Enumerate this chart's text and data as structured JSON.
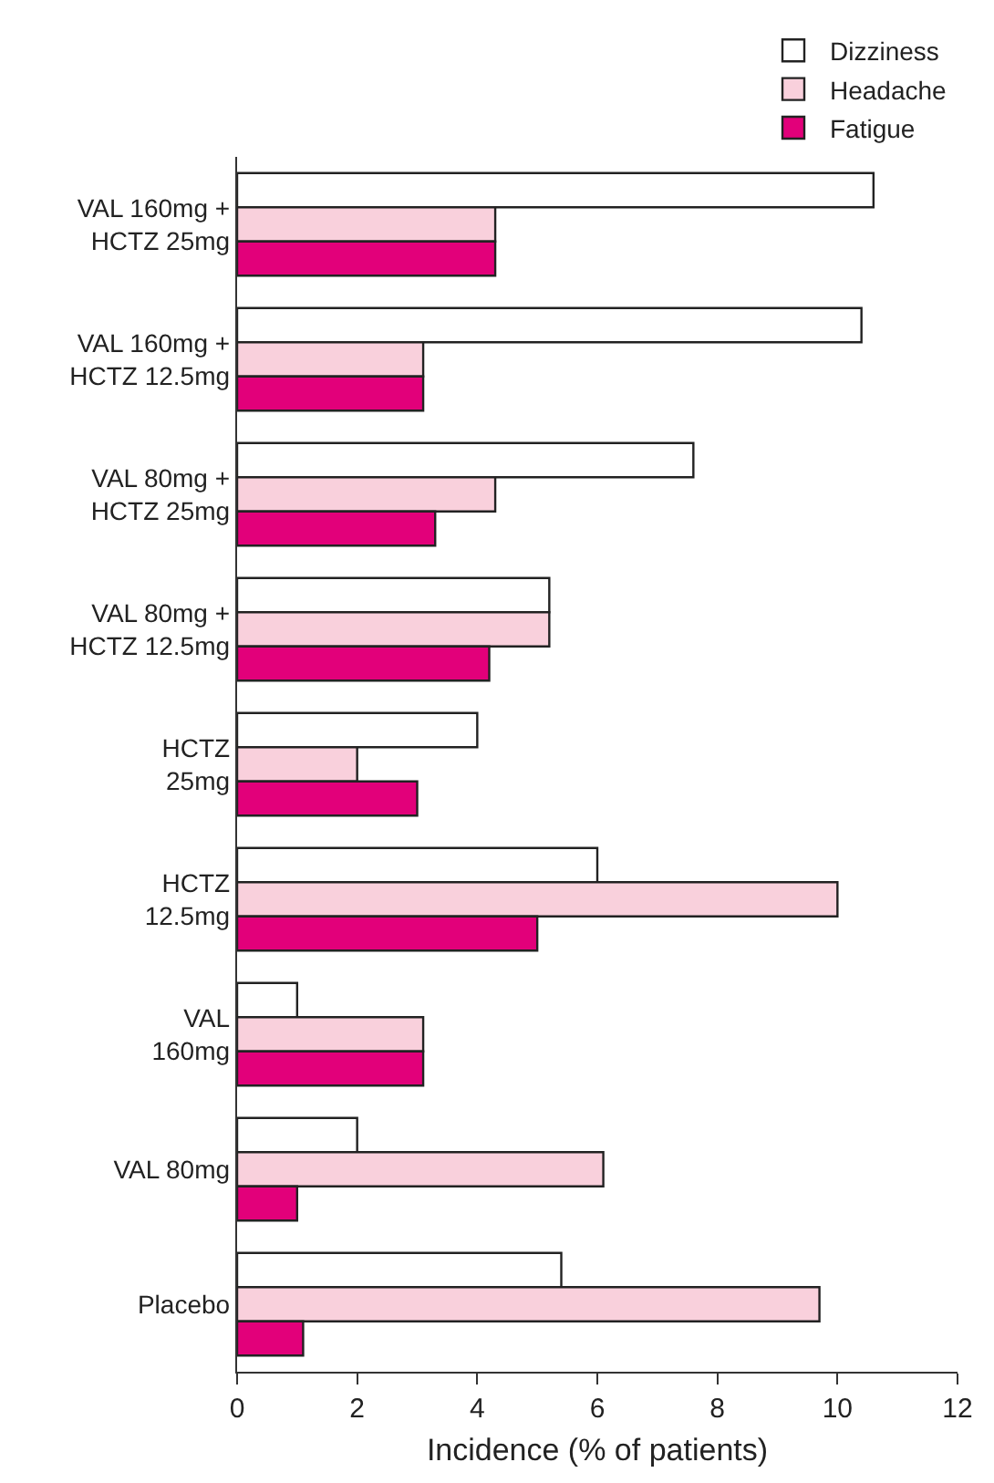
{
  "chart_data": {
    "type": "bar",
    "orientation": "horizontal",
    "categories": [
      "VAL 160mg +\nHCTZ 25mg",
      "VAL 160mg +\nHCTZ 12.5mg",
      "VAL 80mg +\nHCTZ 25mg",
      "VAL 80mg +\nHCTZ 12.5mg",
      "HCTZ\n25mg",
      "HCTZ\n12.5mg",
      "VAL\n160mg",
      "VAL 80mg",
      "Placebo"
    ],
    "series": [
      {
        "name": "Dizziness",
        "color": "#ffffff",
        "values": [
          10.6,
          10.4,
          7.6,
          5.2,
          4.0,
          6.0,
          1.0,
          2.0,
          5.4
        ]
      },
      {
        "name": "Headache",
        "color": "#f9d0dc",
        "values": [
          4.3,
          3.1,
          4.3,
          5.2,
          2.0,
          10.0,
          3.1,
          6.1,
          9.7
        ]
      },
      {
        "name": "Fatigue",
        "color": "#e2007a",
        "values": [
          4.3,
          3.1,
          3.3,
          4.2,
          3.0,
          5.0,
          3.1,
          1.0,
          1.1
        ]
      }
    ],
    "xlabel": "Incidence (% of patients)",
    "xlim": [
      0,
      12
    ],
    "xticks": [
      0,
      2,
      4,
      6,
      8,
      10,
      12
    ],
    "legend": "top right"
  }
}
